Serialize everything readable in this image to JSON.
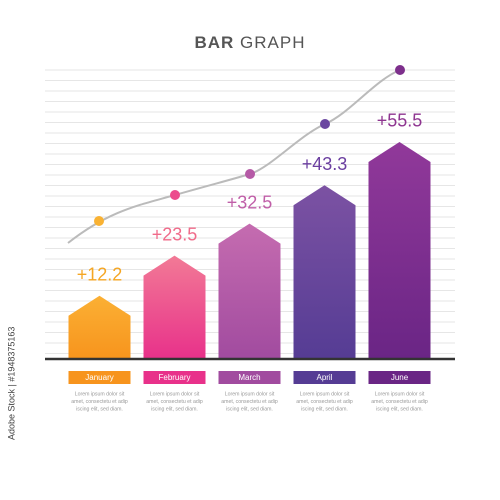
{
  "chart_data": {
    "type": "bar",
    "title": {
      "bold": "BAR",
      "regular": "GRAPH"
    },
    "categories": [
      "January",
      "February",
      "March",
      "April",
      "June"
    ],
    "values": [
      12.2,
      23.5,
      32.5,
      43.3,
      55.5
    ],
    "value_labels": [
      "+12.2",
      "+23.5",
      "+32.5",
      "+43.3",
      "+55.5"
    ],
    "colors": [
      [
        "#fbb034",
        "#f7941d"
      ],
      [
        "#f27a96",
        "#e8318a"
      ],
      [
        "#c56cb0",
        "#a14b9f"
      ],
      [
        "#7c52a3",
        "#553c94"
      ],
      [
        "#91399a",
        "#6a2585"
      ]
    ],
    "label_colors": [
      "#f5a623",
      "#f06b8a",
      "#c05fa8",
      "#6b3fa0",
      "#8e3590"
    ],
    "captions": [
      [
        "Lorem ipsum dolor sit",
        "amet, consectetu et adip",
        "iscing elit, sed diam."
      ],
      [
        "Lorem ipsum dolor sit",
        "amet, consectetu et adip",
        "iscing elit, sed diam."
      ],
      [
        "Lorem ipsum dolor sit",
        "amet, consectetu et adip",
        "iscing elit, sed diam."
      ],
      [
        "Lorem ipsum dolor sit",
        "amet, consectetu et adip",
        "iscing elit, sed diam."
      ],
      [
        "Lorem ipsum dolor sit",
        "amet, consectetu et adip",
        "iscing elit, sed diam."
      ]
    ]
  },
  "stock_id": "Adobe Stock | #1948375163"
}
